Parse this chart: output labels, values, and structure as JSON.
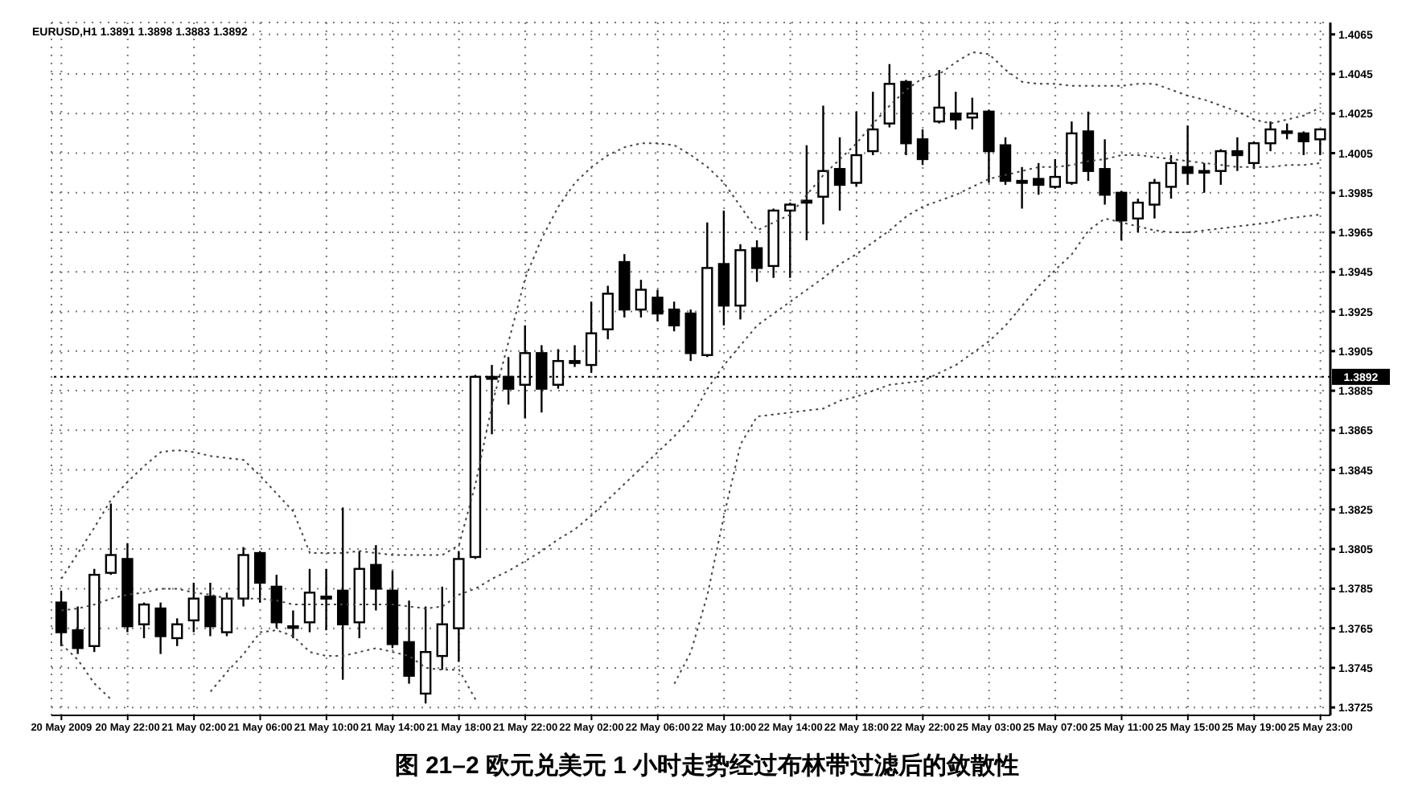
{
  "chart_data": {
    "type": "candlestick",
    "title": "图 21–2 欧元兑美元 1 小时走势经过布林带过滤后的敛散性",
    "annotations": [
      "EURUSD,H1 1.3891 1.3898 1.3883 1.3892"
    ],
    "categories": [
      "20 May 2009",
      null,
      null,
      null,
      "20 May 22:00",
      null,
      null,
      null,
      "21 May 02:00",
      null,
      null,
      null,
      "21 May 06:00",
      null,
      null,
      null,
      "21 May 10:00",
      null,
      null,
      null,
      "21 May 14:00",
      null,
      null,
      null,
      "21 May 18:00",
      null,
      null,
      null,
      "21 May 22:00",
      null,
      null,
      null,
      "22 May 02:00",
      null,
      null,
      null,
      "22 May 06:00",
      null,
      null,
      null,
      "22 May 10:00",
      null,
      null,
      null,
      "22 May 14:00",
      null,
      null,
      null,
      "22 May 18:00",
      null,
      null,
      null,
      "22 May 22:00",
      null,
      null,
      null,
      "25 May 03:00",
      null,
      null,
      null,
      "25 May 07:00",
      null,
      null,
      null,
      "25 May 11:00",
      null,
      null,
      null,
      "25 May 15:00",
      null,
      null,
      null,
      "25 May 19:00",
      null,
      null,
      null,
      "25 May 23:00"
    ],
    "color": "#000000",
    "ohlc": [
      [
        1.3778,
        1.3784,
        1.3756,
        1.3763
      ],
      [
        1.3764,
        1.3776,
        1.3752,
        1.3755
      ],
      [
        1.3756,
        1.3795,
        1.3753,
        1.3792
      ],
      [
        1.3793,
        1.3828,
        1.3792,
        1.3802
      ],
      [
        1.38,
        1.3808,
        1.3763,
        1.3766
      ],
      [
        1.3767,
        1.3778,
        1.376,
        1.3777
      ],
      [
        1.3775,
        1.3778,
        1.3752,
        1.3761
      ],
      [
        1.376,
        1.377,
        1.3756,
        1.3767
      ],
      [
        1.3769,
        1.3788,
        1.3763,
        1.378
      ],
      [
        1.3781,
        1.3788,
        1.3761,
        1.3766
      ],
      [
        1.3763,
        1.3783,
        1.3761,
        1.378
      ],
      [
        1.378,
        1.3806,
        1.3776,
        1.3802
      ],
      [
        1.3803,
        1.3804,
        1.3778,
        1.3788
      ],
      [
        1.3786,
        1.3792,
        1.3765,
        1.3768
      ],
      [
        1.3766,
        1.3774,
        1.376,
        1.3766
      ],
      [
        1.3768,
        1.3795,
        1.3763,
        1.3783
      ],
      [
        1.3781,
        1.3795,
        1.3764,
        1.378
      ],
      [
        1.3784,
        1.3826,
        1.3739,
        1.3767
      ],
      [
        1.3768,
        1.3804,
        1.376,
        1.3795
      ],
      [
        1.3797,
        1.3807,
        1.3774,
        1.3785
      ],
      [
        1.3784,
        1.3794,
        1.3755,
        1.3757
      ],
      [
        1.3758,
        1.3779,
        1.3737,
        1.3741
      ],
      [
        1.3732,
        1.3776,
        1.3727,
        1.3753
      ],
      [
        1.3751,
        1.3786,
        1.3744,
        1.3767
      ],
      [
        1.3765,
        1.3804,
        1.3748,
        1.38
      ],
      [
        1.3801,
        1.3893,
        1.38,
        1.3892
      ],
      [
        1.3891,
        1.3898,
        1.3863,
        1.3892
      ],
      [
        1.3892,
        1.3902,
        1.3878,
        1.3886
      ],
      [
        1.3888,
        1.3918,
        1.3871,
        1.3904
      ],
      [
        1.3904,
        1.3908,
        1.3874,
        1.3886
      ],
      [
        1.3888,
        1.3906,
        1.3886,
        1.39
      ],
      [
        1.3899,
        1.3908,
        1.3897,
        1.39
      ],
      [
        1.3898,
        1.393,
        1.3894,
        1.3914
      ],
      [
        1.3916,
        1.3938,
        1.3911,
        1.3934
      ],
      [
        1.395,
        1.3954,
        1.3922,
        1.3926
      ],
      [
        1.3926,
        1.3941,
        1.3922,
        1.3936
      ],
      [
        1.3932,
        1.3936,
        1.392,
        1.3924
      ],
      [
        1.3926,
        1.393,
        1.3915,
        1.3918
      ],
      [
        1.3924,
        1.3926,
        1.39,
        1.3904
      ],
      [
        1.3903,
        1.397,
        1.3902,
        1.3947
      ],
      [
        1.3949,
        1.3976,
        1.3918,
        1.3928
      ],
      [
        1.3928,
        1.3959,
        1.3921,
        1.3956
      ],
      [
        1.3957,
        1.3961,
        1.394,
        1.3947
      ],
      [
        1.3948,
        1.3977,
        1.3942,
        1.3976
      ],
      [
        1.3976,
        1.398,
        1.3942,
        1.3979
      ],
      [
        1.398,
        1.4009,
        1.3961,
        1.3981
      ],
      [
        1.3983,
        1.4029,
        1.3969,
        1.3996
      ],
      [
        1.3997,
        1.4013,
        1.3976,
        1.3989
      ],
      [
        1.399,
        1.4026,
        1.3988,
        1.4004
      ],
      [
        1.4006,
        1.4036,
        1.4004,
        1.4017
      ],
      [
        1.402,
        1.405,
        1.4018,
        1.404
      ],
      [
        1.4041,
        1.4042,
        1.4004,
        1.401
      ],
      [
        1.4012,
        1.4017,
        1.3999,
        1.4002
      ],
      [
        1.4021,
        1.4047,
        1.402,
        1.4028
      ],
      [
        1.4025,
        1.4036,
        1.4017,
        1.4022
      ],
      [
        1.4023,
        1.4033,
        1.4017,
        1.4025
      ],
      [
        1.4026,
        1.4027,
        1.399,
        1.4006
      ],
      [
        1.4009,
        1.4013,
        1.3989,
        1.3991
      ],
      [
        1.3991,
        1.3998,
        1.3977,
        1.399
      ],
      [
        1.3992,
        1.4,
        1.3984,
        1.3989
      ],
      [
        1.3988,
        1.4002,
        1.3987,
        1.3993
      ],
      [
        1.399,
        1.4021,
        1.3989,
        1.4015
      ],
      [
        1.4016,
        1.4026,
        1.3991,
        1.3996
      ],
      [
        1.3997,
        1.4012,
        1.3979,
        1.3984
      ],
      [
        1.3985,
        1.3986,
        1.3961,
        1.3971
      ],
      [
        1.3972,
        1.3982,
        1.3965,
        1.398
      ],
      [
        1.3979,
        1.3992,
        1.3972,
        1.399
      ],
      [
        1.3988,
        1.4004,
        1.3982,
        1.4
      ],
      [
        1.3998,
        1.4019,
        1.3989,
        1.3995
      ],
      [
        1.3996,
        1.4,
        1.3985,
        1.3996
      ],
      [
        1.3996,
        1.4007,
        1.3989,
        1.4006
      ],
      [
        1.4006,
        1.4013,
        1.3996,
        1.4004
      ],
      [
        1.4,
        1.4011,
        1.3997,
        1.401
      ],
      [
        1.401,
        1.4021,
        1.4006,
        1.4017
      ],
      [
        1.4016,
        1.402,
        1.4012,
        1.4016
      ],
      [
        1.4015,
        1.4016,
        1.4004,
        1.4011
      ],
      [
        1.4012,
        1.4017,
        1.4004,
        1.4017
      ]
    ],
    "series": [
      {
        "type": "line",
        "color": "#444444",
        "line_style": "dotted",
        "values": [
          1.379,
          1.3803,
          1.3816,
          1.383,
          1.3839,
          1.3847,
          1.3854,
          1.3855,
          1.3854,
          1.3852,
          1.3851,
          1.385,
          1.3842,
          1.3833,
          1.3824,
          1.3803,
          1.3803,
          1.3803,
          1.3804,
          1.3803,
          1.3802,
          1.3802,
          1.3802,
          1.3802,
          1.3807,
          1.3838,
          1.3878,
          1.391,
          1.3942,
          1.3962,
          1.3978,
          1.399,
          1.3998,
          1.4004,
          1.4008,
          1.401,
          1.401,
          1.4009,
          1.4004,
          1.3998,
          1.399,
          1.3978,
          1.3966,
          1.397,
          1.3974,
          1.3984,
          1.3994,
          1.4002,
          1.401,
          1.402,
          1.4029,
          1.4037,
          1.4043,
          1.4045,
          1.4051,
          1.4056,
          1.4055,
          1.4047,
          1.4041,
          1.404,
          1.404,
          1.4039,
          1.4039,
          1.4039,
          1.4039,
          1.404,
          1.404,
          1.4037,
          1.4034,
          1.4032,
          1.4029,
          1.4026,
          1.4022,
          1.402,
          1.4022,
          1.4024,
          1.4028
        ]
      },
      {
        "type": "line",
        "color": "#444444",
        "line_style": "dotted",
        "values": [
          1.3774,
          1.3775,
          1.3777,
          1.378,
          1.3782,
          1.3783,
          1.3785,
          1.3785,
          1.3783,
          1.3782,
          1.378,
          1.378,
          1.378,
          1.3779,
          1.3777,
          1.3777,
          1.3777,
          1.3777,
          1.3777,
          1.3777,
          1.3777,
          1.3776,
          1.3775,
          1.3776,
          1.3782,
          1.3785,
          1.379,
          1.3794,
          1.3799,
          1.3804,
          1.381,
          1.3815,
          1.3822,
          1.383,
          1.3838,
          1.3846,
          1.3854,
          1.3862,
          1.3871,
          1.3886,
          1.3898,
          1.3908,
          1.3918,
          1.3924,
          1.393,
          1.3936,
          1.3942,
          1.3949,
          1.3954,
          1.396,
          1.3966,
          1.3973,
          1.3978,
          1.3981,
          1.3984,
          1.3988,
          1.3992,
          1.3994,
          1.3996,
          1.3998,
          1.3998,
          1.3999,
          1.4001,
          1.4002,
          1.4004,
          1.4004,
          1.4003,
          1.4002,
          1.4001,
          1.4,
          1.3999,
          1.3998,
          1.3998,
          1.3998,
          1.3999,
          1.3999,
          1.4
        ]
      },
      {
        "type": "line",
        "color": "#444444",
        "line_style": "dotted",
        "values": [
          1.3757,
          1.3749,
          1.3737,
          1.3729,
          null,
          null,
          null,
          null,
          null,
          1.3733,
          1.3743,
          1.3752,
          1.3763,
          1.3764,
          1.3761,
          1.3753,
          1.3751,
          1.3751,
          1.3753,
          1.3755,
          1.3753,
          1.3751,
          1.3745,
          1.3744,
          1.3744,
          1.3729,
          null,
          null,
          null,
          null,
          null,
          null,
          null,
          null,
          null,
          null,
          null,
          1.3737,
          1.3753,
          1.3782,
          1.3822,
          1.3858,
          1.3872,
          1.3873,
          1.3874,
          1.3875,
          1.3876,
          1.388,
          1.3882,
          1.3885,
          1.3888,
          1.3889,
          1.389,
          1.3894,
          1.3898,
          1.3904,
          1.391,
          1.3918,
          1.3928,
          1.3938,
          1.3946,
          1.3954,
          1.3966,
          1.3972,
          1.397,
          1.3968,
          1.3966,
          1.3965,
          1.3965,
          1.3966,
          1.3967,
          1.3968,
          1.3969,
          1.397,
          1.3972,
          1.3973,
          1.3974
        ]
      }
    ],
    "ylim": [
      1.3721,
      1.4071
    ],
    "yticks": [
      1.4065,
      1.4045,
      1.4025,
      1.4005,
      1.3985,
      1.3965,
      1.3945,
      1.3925,
      1.3905,
      1.3885,
      1.3865,
      1.3845,
      1.3825,
      1.3805,
      1.3785,
      1.3765,
      1.3745,
      1.3725
    ],
    "grid": true,
    "ref_lines": [
      {
        "axis": "y",
        "value": 1.3892,
        "label": "1.3892",
        "color": "#000000",
        "line_style": "dotted"
      }
    ]
  }
}
